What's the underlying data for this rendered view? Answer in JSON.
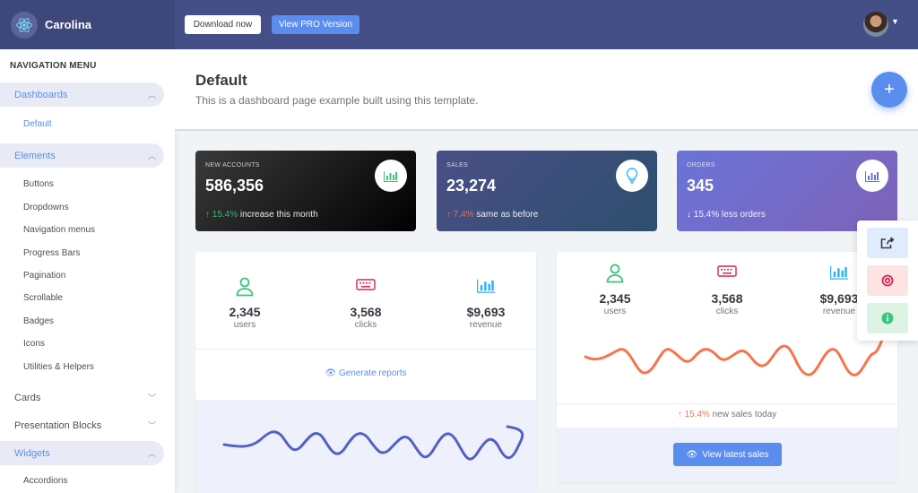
{
  "header": {
    "app_name": "Carolina",
    "download_label": "Download now",
    "pro_label": "View PRO Version"
  },
  "sidebar": {
    "heading": "NAVIGATION MENU",
    "groups": [
      {
        "label": "Dashboards",
        "active": true
      },
      {
        "label": "Elements",
        "active": true
      },
      {
        "label": "Cards"
      },
      {
        "label": "Presentation Blocks"
      },
      {
        "label": "Widgets",
        "active": true
      }
    ],
    "dashboards_items": [
      "Default"
    ],
    "elements_items": [
      "Buttons",
      "Dropdowns",
      "Navigation menus",
      "Progress Bars",
      "Pagination",
      "Scrollable",
      "Badges",
      "Icons",
      "Utilities & Helpers"
    ],
    "widgets_items": [
      "Accordions"
    ]
  },
  "page": {
    "title": "Default",
    "subtitle": "This is a dashboard page example built using this template.",
    "fab": "+"
  },
  "stats": [
    {
      "label": "NEW ACCOUNTS",
      "value": "586,356",
      "change": "15.4%",
      "note": "increase this month",
      "icon": "bar-chart-icon"
    },
    {
      "label": "SALES",
      "value": "23,274",
      "change": "7.4%",
      "note": "same as before",
      "icon": "lightbulb-icon"
    },
    {
      "label": "ORDERS",
      "value": "345",
      "change": "15.4%",
      "note": "less orders",
      "icon": "bar-chart-icon"
    }
  ],
  "card_left": {
    "metrics": [
      {
        "value": "2,345",
        "label": "users",
        "icon": "user-icon",
        "color": "#3ac47d"
      },
      {
        "value": "3,568",
        "label": "clicks",
        "icon": "keyboard-icon",
        "color": "#d92550"
      },
      {
        "value": "$9,693",
        "label": "revenue",
        "icon": "bar-chart-icon",
        "color": "#30b1ff"
      }
    ],
    "link": "Generate reports"
  },
  "card_right": {
    "metrics": [
      {
        "value": "2,345",
        "label": "users",
        "icon": "user-icon",
        "color": "#3ac47d"
      },
      {
        "value": "3,568",
        "label": "clicks",
        "icon": "keyboard-icon",
        "color": "#d92550"
      },
      {
        "value": "$9,693",
        "label": "revenue",
        "icon": "bar-chart-icon",
        "color": "#30b1ff"
      }
    ],
    "change": "15.4%",
    "change_note": "new sales today",
    "button": "View latest sales"
  },
  "tools": [
    "share-icon",
    "lifebuoy-icon",
    "info-icon"
  ],
  "colors": {
    "accent": "#5b8def",
    "header": "#444e87",
    "green": "#3ac47d",
    "orange": "#f7744d",
    "red": "#d92550"
  }
}
